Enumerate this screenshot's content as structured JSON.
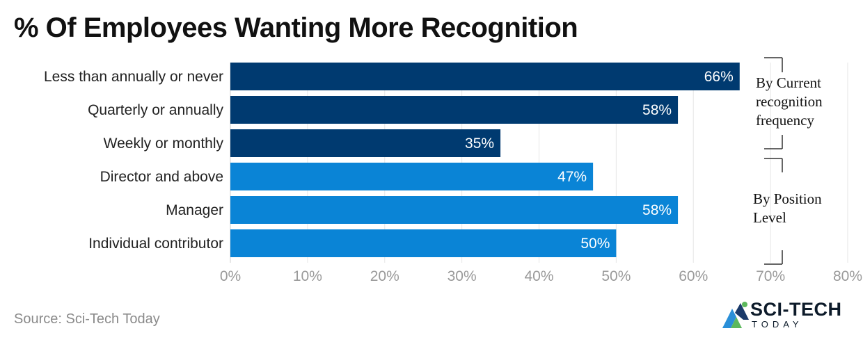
{
  "chart_data": {
    "type": "bar",
    "orientation": "horizontal",
    "title": "% Of Employees Wanting More Recognition",
    "categories": [
      "Less than annually or never",
      "Quarterly or annually",
      "Weekly or monthly",
      "Director and above",
      "Manager",
      "Individual contributor"
    ],
    "values": [
      66,
      58,
      35,
      47,
      58,
      50
    ],
    "value_labels": [
      "66%",
      "58%",
      "35%",
      "47%",
      "58%",
      "50%"
    ],
    "groups": [
      {
        "name": "By Current recognition frequency",
        "lines": [
          "By Current",
          "recognition",
          "frequency"
        ],
        "color": "#003a70",
        "categories": [
          0,
          1,
          2
        ]
      },
      {
        "name": "By Position Level",
        "lines": [
          "By Position",
          "Level"
        ],
        "color": "#0a84d6",
        "categories": [
          3,
          4,
          5
        ]
      }
    ],
    "xlim": [
      0,
      80
    ],
    "xticks": [
      0,
      10,
      20,
      30,
      40,
      50,
      60,
      70,
      80
    ],
    "xtick_labels": [
      "0%",
      "10%",
      "20%",
      "30%",
      "40%",
      "50%",
      "60%",
      "70%",
      "80%"
    ],
    "grid": true,
    "xlabel": "",
    "ylabel": ""
  },
  "source": "Source: Sci-Tech Today",
  "logo": {
    "text": "SCI-TECH",
    "subtext": "TODAY"
  }
}
